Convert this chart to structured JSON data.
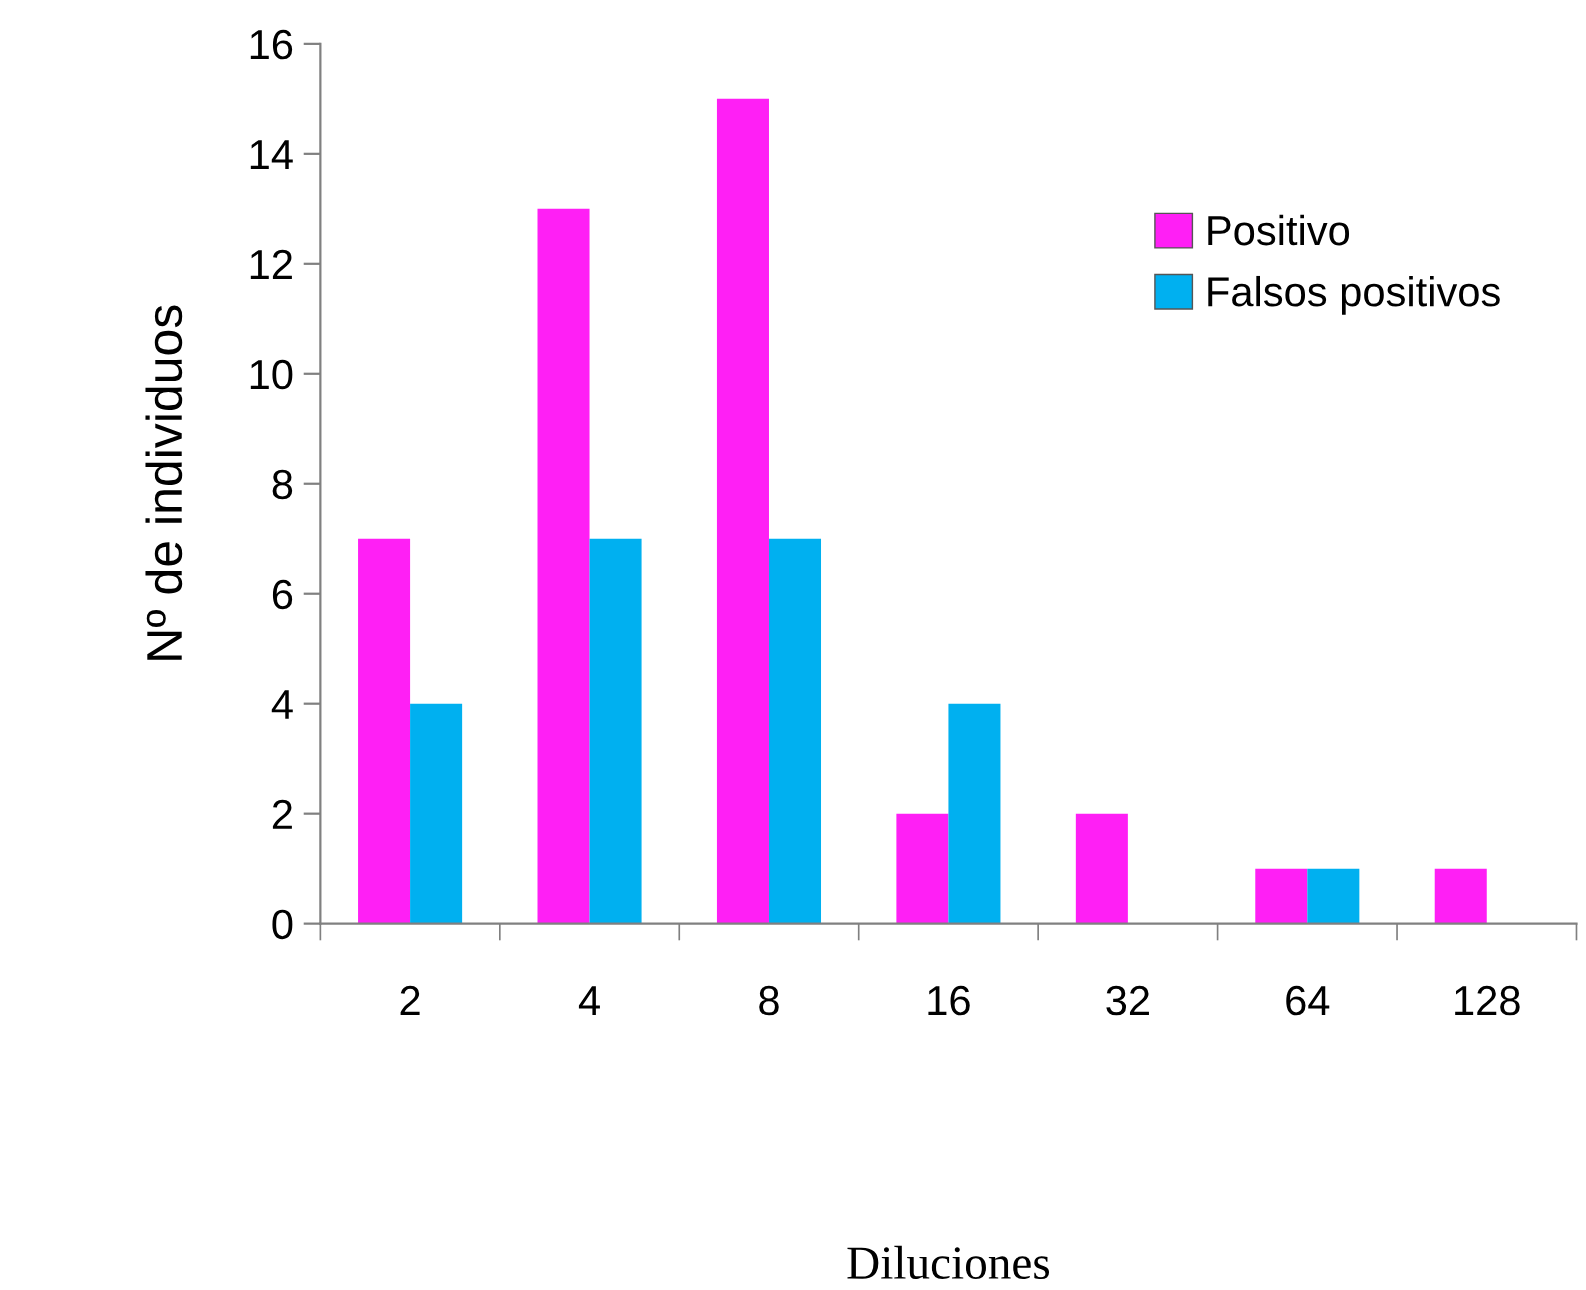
{
  "chart_data": {
    "type": "bar",
    "xlabel": "Diluciones",
    "ylabel": "Nº de individuos",
    "categories": [
      "2",
      "4",
      "8",
      "16",
      "32",
      "64",
      "128"
    ],
    "series": [
      {
        "name": "Positivo",
        "color": "#ff1ff5",
        "values": [
          7,
          13,
          15,
          2,
          2,
          1,
          1
        ]
      },
      {
        "name": "Falsos positivos",
        "color": "#00b0f0",
        "values": [
          4,
          7,
          7,
          4,
          0,
          1,
          0
        ]
      }
    ],
    "ylim": [
      0,
      16
    ],
    "yticks": [
      0,
      2,
      4,
      6,
      8,
      10,
      12,
      14,
      16
    ],
    "grid": false,
    "legend": "top right"
  }
}
